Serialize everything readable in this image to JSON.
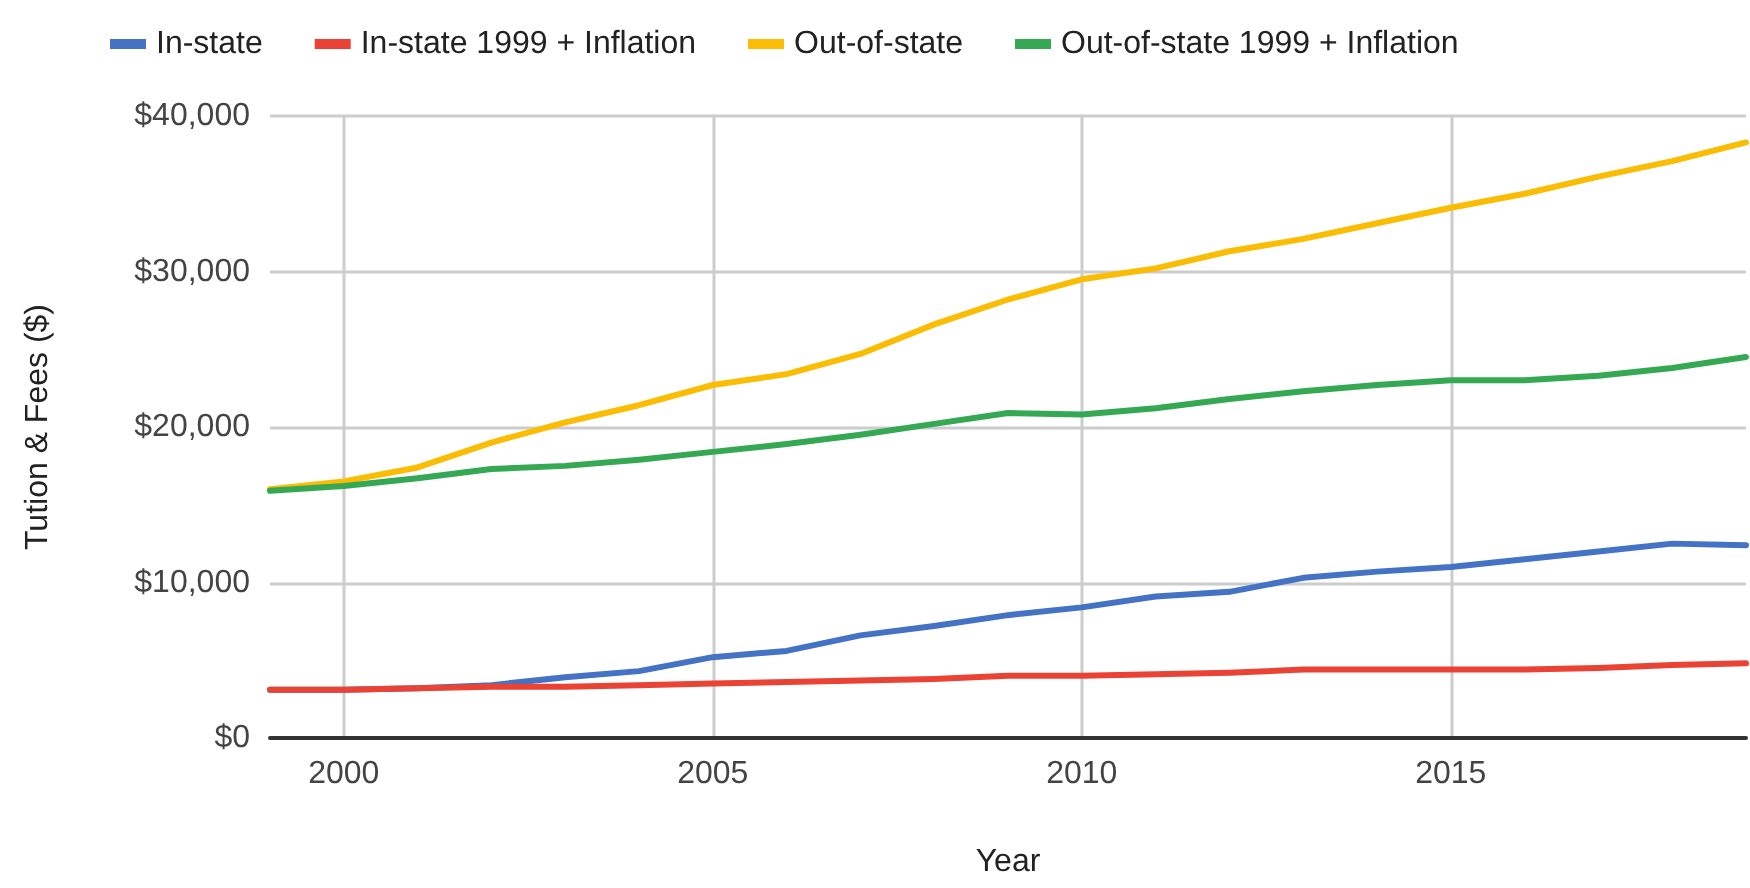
{
  "chart_data": {
    "type": "line",
    "xlabel": "Year",
    "ylabel": "Tution & Fees ($)",
    "x": [
      1999,
      2000,
      2001,
      2002,
      2003,
      2004,
      2005,
      2006,
      2007,
      2008,
      2009,
      2010,
      2011,
      2012,
      2013,
      2014,
      2015,
      2016,
      2017,
      2018,
      2019
    ],
    "series": [
      {
        "name": "In-state",
        "color": "#4472c4",
        "values": [
          3100,
          3100,
          3200,
          3400,
          3900,
          4300,
          5200,
          5600,
          6600,
          7200,
          7900,
          8400,
          9100,
          9400,
          10300,
          10700,
          11000,
          11500,
          12000,
          12500,
          12400
        ]
      },
      {
        "name": "In-state 1999 + Inflation",
        "color": "#ea4335",
        "values": [
          3100,
          3100,
          3200,
          3300,
          3300,
          3400,
          3500,
          3600,
          3700,
          3800,
          4000,
          4000,
          4100,
          4200,
          4400,
          4400,
          4400,
          4400,
          4500,
          4700,
          4800
        ]
      },
      {
        "name": "Out-of-state",
        "color": "#fbbc04",
        "values": [
          16000,
          16500,
          17400,
          19000,
          20300,
          21400,
          22700,
          23400,
          24700,
          26600,
          28200,
          29500,
          30200,
          31300,
          32100,
          33100,
          34100,
          35000,
          36100,
          37100,
          38300
        ]
      },
      {
        "name": "Out-of-state 1999 + Inflation",
        "color": "#34a853",
        "values": [
          15900,
          16200,
          16700,
          17300,
          17500,
          17900,
          18400,
          18900,
          19500,
          20200,
          20900,
          20800,
          21200,
          21800,
          22300,
          22700,
          23000,
          23000,
          23300,
          23800,
          24500
        ]
      }
    ],
    "xlim": [
      1999,
      2019
    ],
    "xticks": [
      2000,
      2005,
      2010,
      2015
    ],
    "ylim": [
      0,
      40000
    ],
    "yticks": [
      {
        "value": 0,
        "label": "$0"
      },
      {
        "value": 10000,
        "label": "$10,000"
      },
      {
        "value": 20000,
        "label": "$20,000"
      },
      {
        "value": 30000,
        "label": "$30,000"
      },
      {
        "value": 40000,
        "label": "$40,000"
      }
    ],
    "grid": true,
    "legend": "top left",
    "line_style": "solid"
  }
}
